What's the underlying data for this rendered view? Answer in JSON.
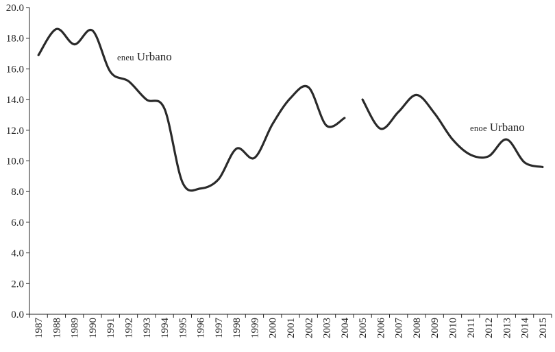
{
  "chart_data": {
    "type": "line",
    "title": "",
    "xlabel": "",
    "ylabel": "",
    "ylim": [
      0,
      20
    ],
    "yticks": [
      "0.0",
      "2.0",
      "4.0",
      "6.0",
      "8.0",
      "10.0",
      "12.0",
      "14.0",
      "16.0",
      "18.0",
      "20.0"
    ],
    "categories": [
      "1987",
      "1988",
      "1989",
      "1990",
      "1991",
      "1992",
      "1993",
      "1994",
      "1995",
      "1996",
      "1997",
      "1998",
      "1999",
      "2000",
      "2001",
      "2002",
      "2003",
      "2004",
      "2005",
      "2006",
      "2007",
      "2008",
      "2009",
      "2010",
      "2011",
      "2012",
      "2013",
      "2014",
      "2015"
    ],
    "grid": false,
    "legend": "none",
    "line_color": "#2a2a2a",
    "series": [
      {
        "name": "ENEU Urbano",
        "name_parts": [
          "eneu",
          "Urbano"
        ],
        "x": [
          "1987",
          "1988",
          "1989",
          "1990",
          "1991",
          "1992",
          "1993",
          "1994",
          "1995",
          "1996",
          "1997",
          "1998",
          "1999",
          "2000",
          "2001",
          "2002",
          "2003",
          "2004"
        ],
        "values": [
          16.9,
          18.6,
          17.6,
          18.5,
          15.8,
          15.2,
          14.0,
          13.4,
          8.6,
          8.2,
          8.8,
          10.8,
          10.2,
          12.4,
          14.1,
          14.8,
          12.3,
          12.8
        ]
      },
      {
        "name": "ENOE Urbano",
        "name_parts": [
          "enoe",
          "Urbano"
        ],
        "x": [
          "2005",
          "2006",
          "2007",
          "2008",
          "2009",
          "2010",
          "2011",
          "2012",
          "2013",
          "2014",
          "2015"
        ],
        "values": [
          14.0,
          12.1,
          13.2,
          14.3,
          13.1,
          11.4,
          10.4,
          10.3,
          11.4,
          9.9,
          9.6
        ]
      }
    ]
  }
}
